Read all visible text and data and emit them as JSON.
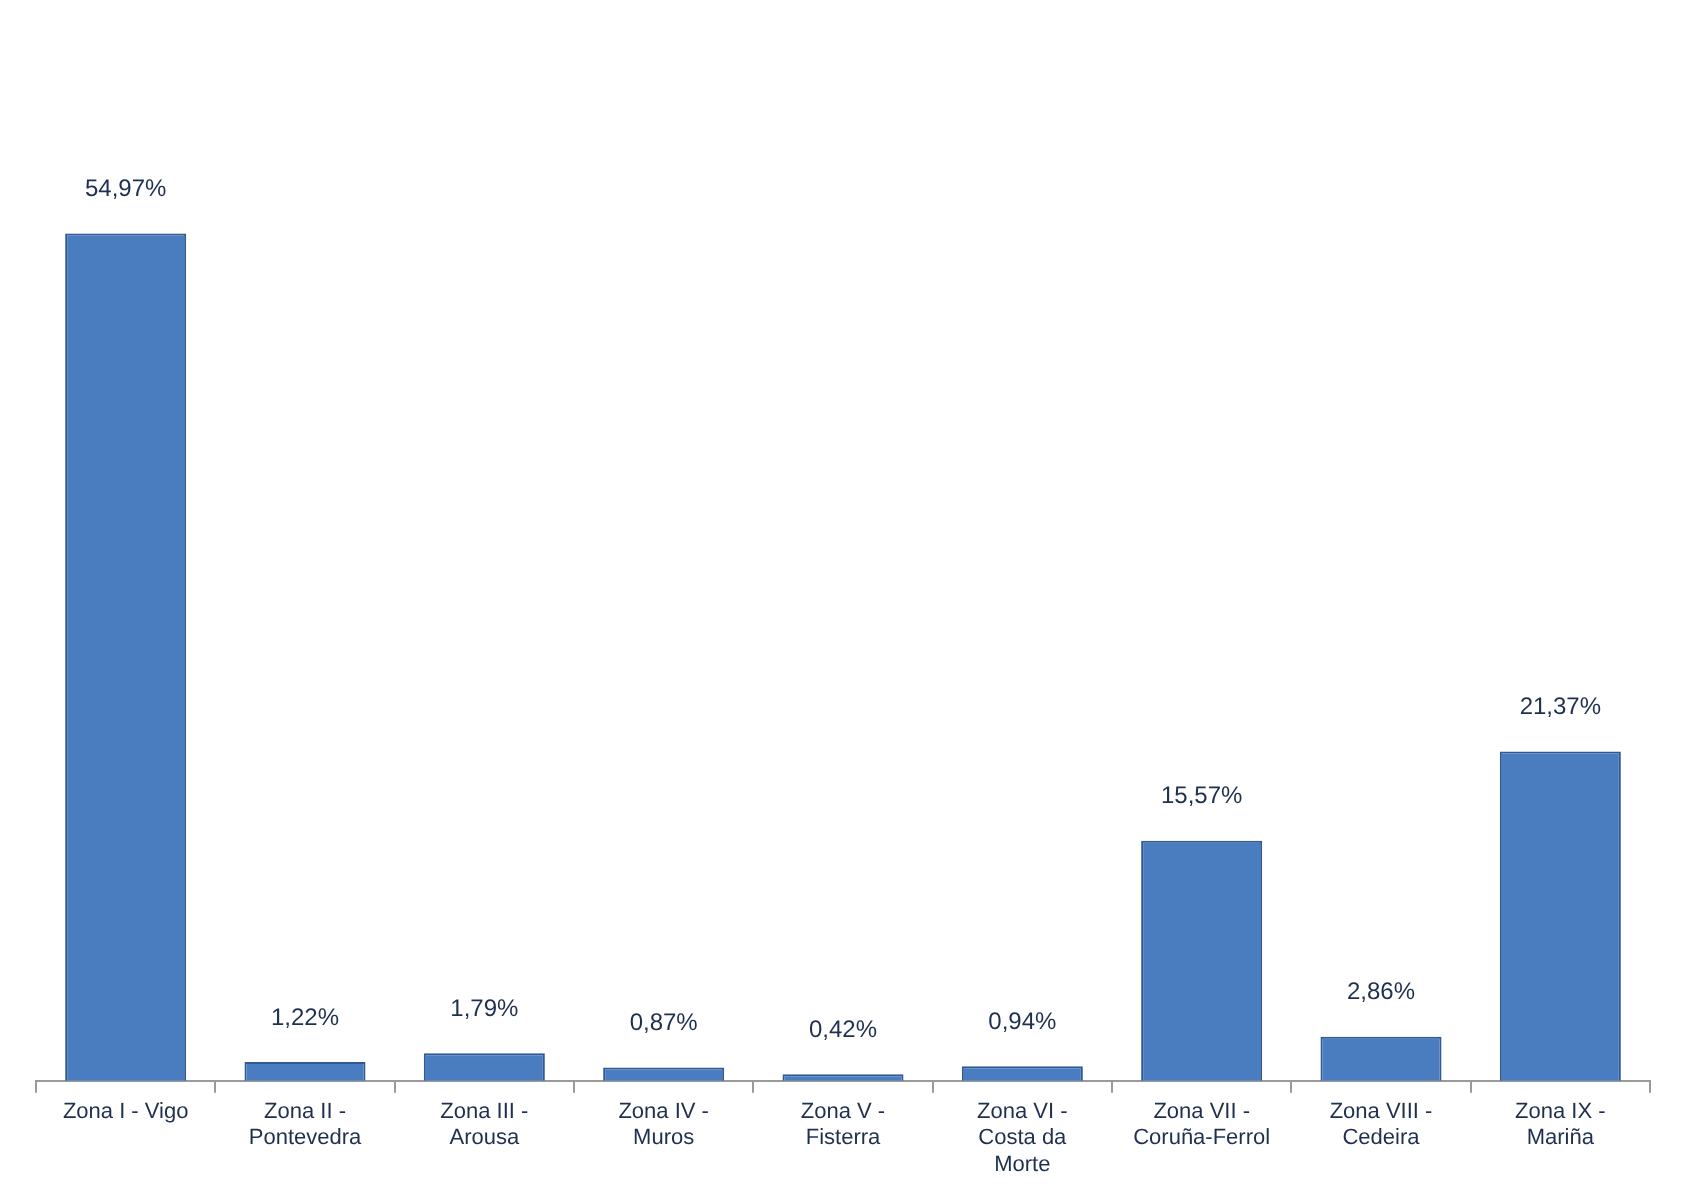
{
  "chart_data": {
    "type": "bar",
    "categories": [
      "Zona I - Vigo",
      "Zona II - Pontevedra",
      "Zona III - Arousa",
      "Zona IV - Muros",
      "Zona V - Fisterra",
      "Zona VI - Costa da Morte",
      "Zona VII - Coruña-Ferrol",
      "Zona VIII - Cedeira",
      "Zona IX - Mariña"
    ],
    "values": [
      54.97,
      1.22,
      1.79,
      0.87,
      0.42,
      0.94,
      15.57,
      2.86,
      21.37
    ],
    "value_labels": [
      "54,97%",
      "1,22%",
      "1,79%",
      "0,87%",
      "0,42%",
      "0,94%",
      "15,57%",
      "2,86%",
      "21,37%"
    ],
    "color": "#4a7cc0",
    "grid": false,
    "legend": false
  }
}
